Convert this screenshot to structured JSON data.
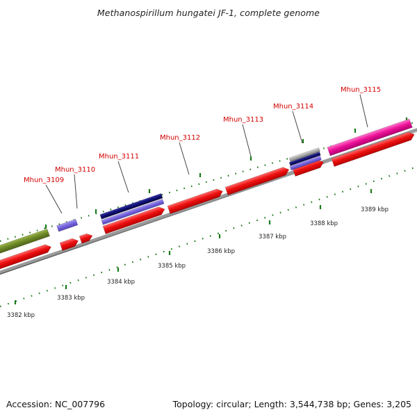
{
  "title": "Methanospirillum hungatei JF-1, complete genome",
  "footer": {
    "accession": "Accession: NC_007796",
    "summary": "Topology: circular; Length: 3,544,738 bp; Genes: 3,205"
  },
  "colors": {
    "gene_label": "#d40000",
    "cds": "#ee1111",
    "backbone": "#888888",
    "ruler": "#1a7a1a",
    "pink": "#ee1199",
    "olive": "#6f8a28",
    "navy": "#111177",
    "lavender": "#7766dd"
  },
  "genes": [
    {
      "name": "Mhun_3109"
    },
    {
      "name": "Mhun_3110"
    },
    {
      "name": "Mhun_3111"
    },
    {
      "name": "Mhun_3112"
    },
    {
      "name": "Mhun_3113"
    },
    {
      "name": "Mhun_3114"
    },
    {
      "name": "Mhun_3115"
    }
  ],
  "scale_labels": [
    "3382 kbp",
    "3383 kbp",
    "3384 kbp",
    "3385 kbp",
    "3386 kbp",
    "3387 kbp",
    "3388 kbp",
    "3389 kbp"
  ]
}
